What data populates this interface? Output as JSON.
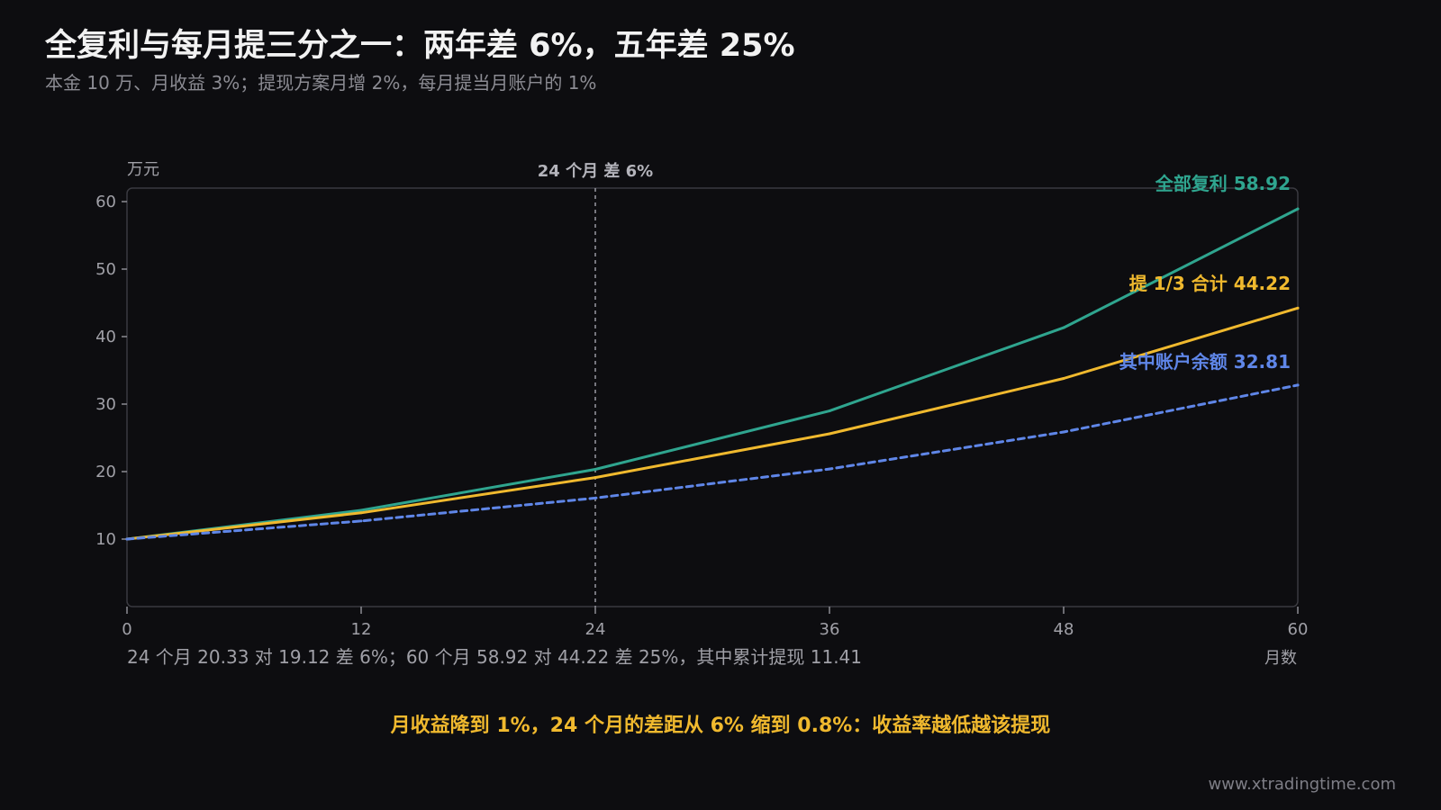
{
  "title": "全复利与每月提三分之一：两年差 6%，五年差 25%",
  "subtitle": "本金 10 万、月收益 3%；提现方案月增 2%，每月提当月账户的 1%",
  "footnote": "24 个月 20.33 对 19.12 差 6%；60 个月 58.92 对 44.22 差 25%，其中累计提现 11.41",
  "highlight": "月收益降到 1%，24 个月的差距从 6% 缩到 0.8%：收益率越低越该提现",
  "source": "www.xtradingtime.com",
  "chart_data": {
    "type": "line",
    "x": [
      0,
      12,
      24,
      36,
      48,
      60
    ],
    "xlabel": "月数",
    "ylabel": "万元",
    "xlim": [
      0,
      60
    ],
    "ylim": [
      0,
      62
    ],
    "xticks": [
      0,
      12,
      24,
      36,
      48,
      60
    ],
    "yticks": [
      10,
      20,
      30,
      40,
      50,
      60
    ],
    "grid": false,
    "legend": "none",
    "series": [
      {
        "label": "全部复利 58.92",
        "color": "#2fa58f",
        "dashed": false,
        "values": [
          10,
          14.26,
          20.33,
          28.98,
          41.32,
          58.92
        ]
      },
      {
        "label": "提 1/3 合计 44.22",
        "color": "#f0b92e",
        "dashed": false,
        "values": [
          10,
          13.9,
          19.12,
          25.6,
          33.8,
          44.22
        ]
      },
      {
        "label": "其中账户余额 32.81",
        "color": "#5f86e8",
        "dashed": true,
        "values": [
          10,
          12.68,
          16.08,
          20.39,
          25.86,
          32.81
        ]
      }
    ],
    "annotations": [
      {
        "x": 24,
        "text": "24 个月 差 6%"
      }
    ]
  }
}
